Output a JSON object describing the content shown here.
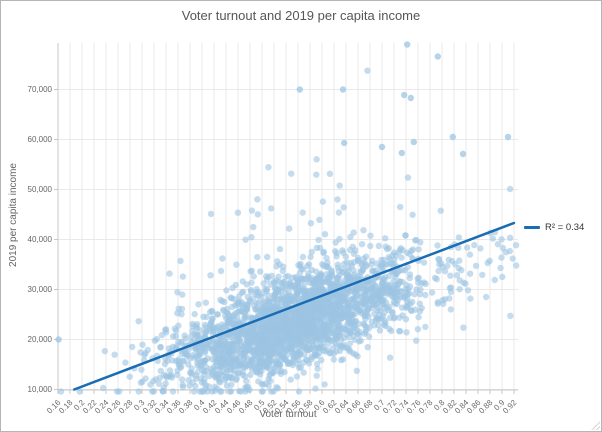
{
  "window": {
    "border_color": "#b5b5b5",
    "background": "#ffffff"
  },
  "chart_data": {
    "type": "scatter",
    "title": "Voter turnout and 2019 per capita income",
    "xlabel": "Voter turnout",
    "ylabel": "2019 per capita income",
    "title_color": "#565656",
    "axis_title_color": "#666666",
    "tick_label_color": "#666666",
    "axis_line_color": "#c8c8c8",
    "grid": {
      "show": true,
      "color": "#e9e9e9"
    },
    "xlim": [
      0.16,
      0.9267
    ],
    "ylim": [
      9900,
      79300
    ],
    "x_tick_values": [
      0.16,
      0.18,
      0.2,
      0.22,
      0.24,
      0.26,
      0.28,
      0.3,
      0.32,
      0.34,
      0.36,
      0.38,
      0.4,
      0.42,
      0.44,
      0.46,
      0.48,
      0.5,
      0.52,
      0.54,
      0.56,
      0.58,
      0.6,
      0.62,
      0.64,
      0.66,
      0.68,
      0.7,
      0.72,
      0.74,
      0.76,
      0.78,
      0.8,
      0.82,
      0.84,
      0.86,
      0.88,
      0.9,
      0.92
    ],
    "x_tick_labels": [
      "0.16",
      "0.18",
      "0.2",
      "0.22",
      "0.24",
      "0.26",
      "0.28",
      "0.3",
      "0.32",
      "0.34",
      "0.36",
      "0.38",
      "0.4",
      "0.42",
      "0.44",
      "0.46",
      "0.48",
      "0.5",
      "0.52",
      "0.54",
      "0.56",
      "0.58",
      "0.6",
      "0.62",
      "0.64",
      "0.66",
      "0.68",
      "0.7",
      "0.72",
      "0.74",
      "0.76",
      "0.78",
      "0.8",
      "0.82",
      "0.84",
      "0.86",
      "0.88",
      "0.9",
      "0.92"
    ],
    "y_tick_values": [
      10000,
      20000,
      30000,
      40000,
      50000,
      60000,
      70000
    ],
    "y_tick_labels": [
      "10,000",
      "20,000",
      "30,000",
      "40,000",
      "50,000",
      "60,000",
      "70,000"
    ],
    "series": [
      {
        "name": "observations",
        "type": "scatter-cloud",
        "marker": {
          "color": "#9cc4e2",
          "opacity": 0.6,
          "radius": 3.2
        },
        "cloud": {
          "count": 2600,
          "seed": 7,
          "x_mean": 0.552,
          "x_sd": 0.099,
          "right_band_prob": 0.03,
          "right_band_min": 0.7,
          "right_band_max": 0.925,
          "x_min": 0.165,
          "x_max": 0.925,
          "y_intercept": 2500,
          "y_slope": 38000,
          "y_sd": 4800,
          "tail_prob": 0.06,
          "tail_scale": 8500,
          "y_min": 9600,
          "y_max": 78800
        },
        "outliers": [
          [
            0.742,
            79000
          ],
          [
            0.793,
            76600
          ],
          [
            0.563,
            70000
          ],
          [
            0.635,
            70000
          ],
          [
            0.737,
            68900
          ],
          [
            0.748,
            68300
          ],
          [
            0.818,
            60500
          ],
          [
            0.91,
            60500
          ],
          [
            0.637,
            59300
          ],
          [
            0.753,
            59500
          ],
          [
            0.7,
            58500
          ],
          [
            0.733,
            57300
          ],
          [
            0.835,
            57100
          ],
          [
            0.161,
            20000
          ],
          [
            0.335,
            9700
          ],
          [
            0.4,
            9600
          ]
        ]
      },
      {
        "name": "regression-line",
        "type": "line",
        "color": "#1a6cb3",
        "width": 2.5,
        "r_squared": 0.34,
        "points": [
          [
            0.187,
            10000
          ],
          [
            0.92,
            43300
          ]
        ]
      }
    ],
    "legend": {
      "label": "R² = 0.34",
      "line_color": "#1a6cb3",
      "position": "right"
    }
  }
}
